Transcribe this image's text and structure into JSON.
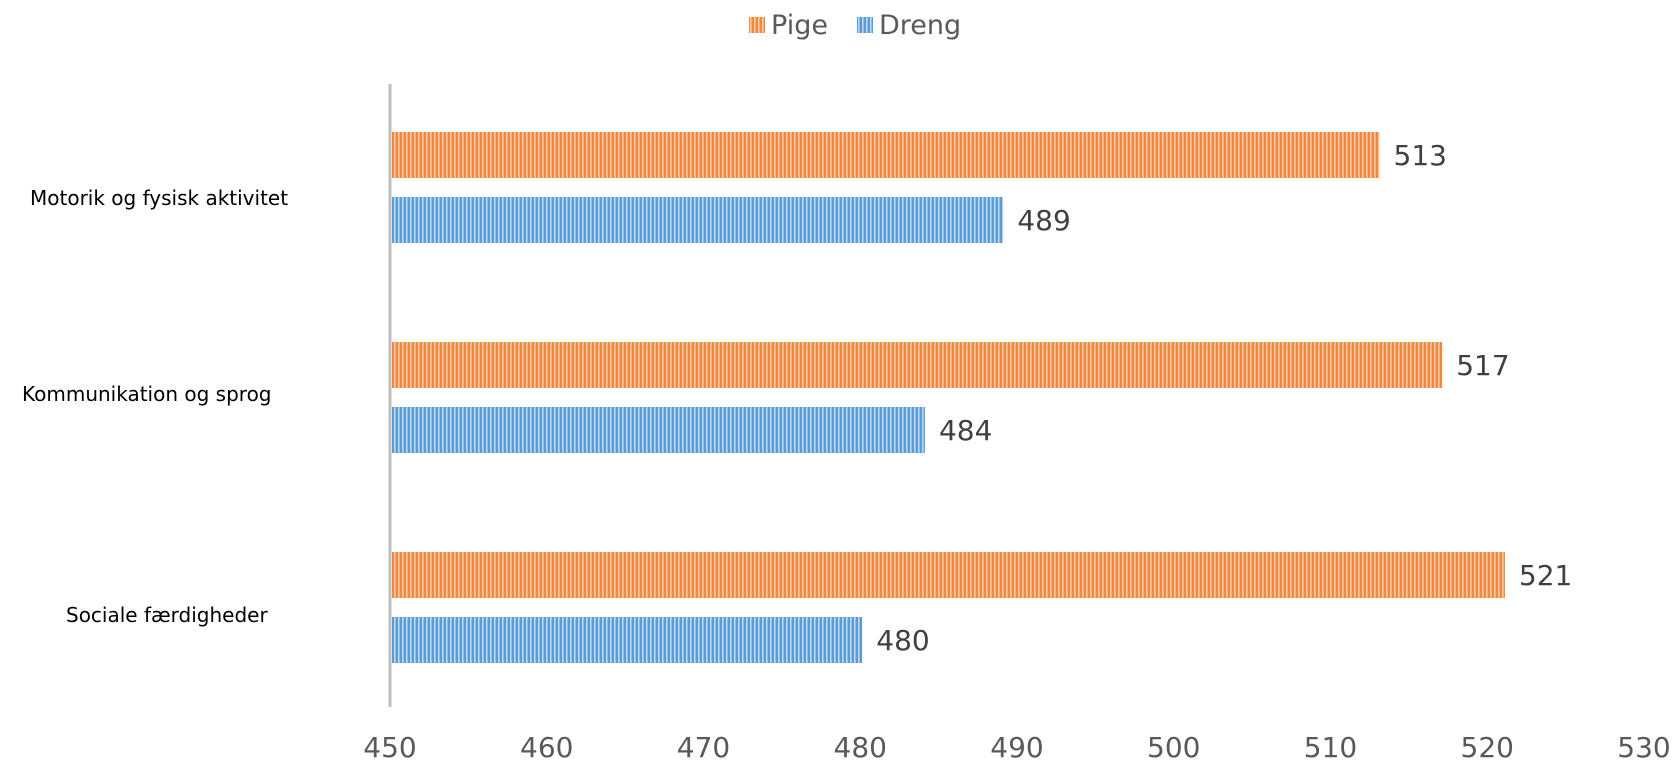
{
  "colors": {
    "pige": "#F0883E",
    "pige_stripe": "#FBC9A6",
    "dreng": "#5B9BD5",
    "dreng_stripe": "#BCD8F1",
    "axis": "#BFBFBF",
    "text": "#595959",
    "label": "#404040"
  },
  "chart_data": {
    "type": "bar",
    "orientation": "horizontal",
    "categories": [
      "Motorik og fysisk aktivitet",
      "Kommunikation og sprog",
      "Sociale færdigheder"
    ],
    "series": [
      {
        "name": "Pige",
        "values": [
          513,
          517,
          521
        ]
      },
      {
        "name": "Dreng",
        "values": [
          489,
          484,
          480
        ]
      }
    ],
    "xlim": [
      450,
      530
    ],
    "xticks": [
      450,
      460,
      470,
      480,
      490,
      500,
      510,
      520,
      530
    ],
    "legend": "top",
    "grid": false
  }
}
